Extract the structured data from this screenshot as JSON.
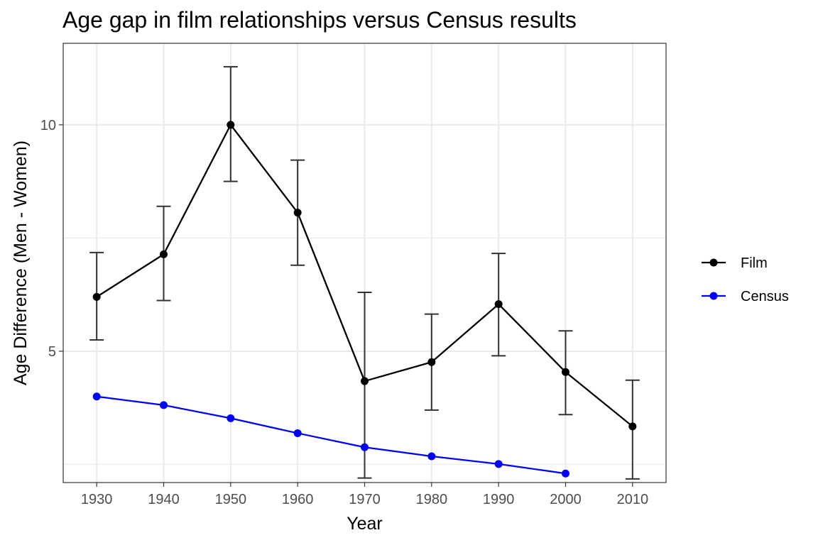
{
  "chart_data": {
    "type": "line",
    "title": "Age gap in film relationships versus Census results",
    "xlabel": "Year",
    "ylabel": "Age Difference (Men - Women)",
    "x": [
      1930,
      1940,
      1950,
      1960,
      1970,
      1980,
      1990,
      2000,
      2010
    ],
    "x_tick_labels": [
      "1930",
      "1940",
      "1950",
      "1960",
      "1970",
      "1980",
      "1990",
      "2000",
      "2010"
    ],
    "y_ticks": [
      5,
      10
    ],
    "y_tick_labels": [
      "5",
      "10"
    ],
    "xlim": [
      1925,
      2015
    ],
    "ylim": [
      2.1,
      11.8
    ],
    "grid": true,
    "legend_position": "right",
    "series": [
      {
        "name": "Film",
        "color": "#000000",
        "values": [
          6.2,
          7.14,
          10.0,
          8.06,
          4.34,
          4.76,
          6.04,
          4.54,
          3.34
        ],
        "error_low": [
          5.25,
          6.12,
          8.75,
          6.9,
          2.2,
          3.7,
          4.9,
          3.6,
          2.18
        ],
        "error_high": [
          7.18,
          8.2,
          11.28,
          9.22,
          6.3,
          5.82,
          7.16,
          5.45,
          4.36
        ]
      },
      {
        "name": "Census",
        "color": "#0000ff",
        "values": [
          4.0,
          3.81,
          3.52,
          3.19,
          2.88,
          2.68,
          2.51,
          2.3,
          null
        ]
      }
    ]
  }
}
